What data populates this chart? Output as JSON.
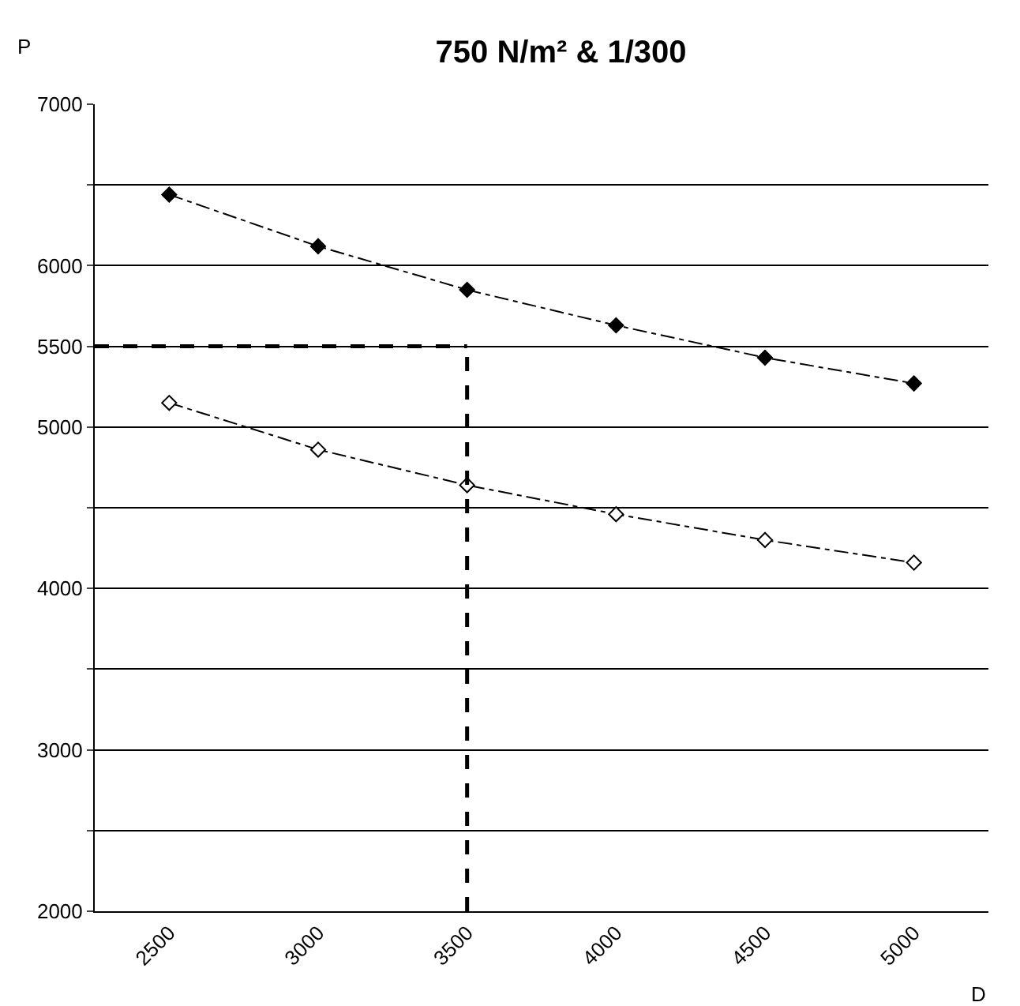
{
  "chart_data": {
    "type": "line",
    "title": "750 N/m² & 1/300",
    "xlabel": "D",
    "ylabel": "P",
    "x": [
      2500,
      3000,
      3500,
      4000,
      4500,
      5000
    ],
    "series": [
      {
        "color": "#000000",
        "marker": "diamond",
        "values": [
          6440,
          6120,
          5850,
          5630,
          5430,
          5270
        ]
      },
      {
        "color": "#000000",
        "marker": "diamond-open",
        "values": [
          5150,
          4860,
          4640,
          4460,
          4300,
          4160
        ]
      }
    ],
    "line_style": "dashed",
    "xlim": [
      2250,
      5250
    ],
    "xticks": [
      2500,
      3000,
      3500,
      4000,
      4500,
      5000
    ],
    "ylim": [
      2000,
      7000
    ],
    "yticks": [
      2000,
      {
        "value": 2500,
        "label": null
      },
      3000,
      {
        "value": 3500,
        "label": null
      },
      4000,
      {
        "value": 4500,
        "label": null
      },
      5000,
      5500,
      6000,
      {
        "value": 6500,
        "label": null
      },
      7000
    ],
    "grid": "y",
    "ref_lines": [
      {
        "axis": "y",
        "value": 5500,
        "color": "#000000",
        "line_style": "dashed"
      },
      {
        "axis": "x",
        "value": 3500,
        "color": "#000000",
        "line_style": "dashed"
      }
    ]
  }
}
